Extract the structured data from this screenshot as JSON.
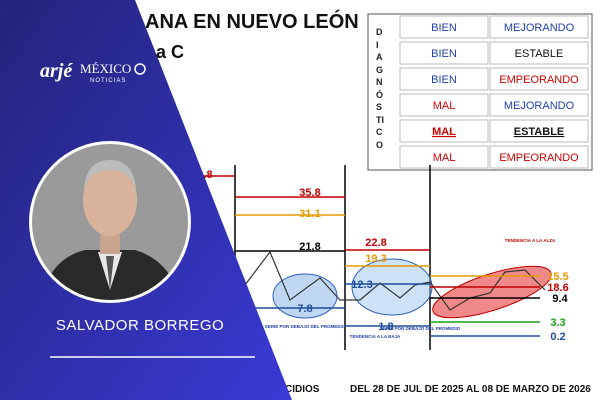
{
  "logo": {
    "brand": "arjé",
    "name": "MÉXICO",
    "tagline": "NOTICIAS"
  },
  "author": "SALVADOR BORREGO",
  "background": {
    "title": "ANA EN NUEVO LEÓN",
    "subtitle": "na C",
    "diagnosis_label": "DIAGNÓSTICO",
    "diagnosis": [
      [
        "BIEN",
        "MEJORANDO"
      ],
      [
        "BIEN",
        "ESTABLE"
      ],
      [
        "BIEN",
        "EMPEORANDO"
      ],
      [
        "MAL",
        "MEJORANDO"
      ],
      [
        "MAL",
        "ESTABLE"
      ],
      [
        "MAL",
        "EMPEORANDO"
      ]
    ],
    "levels": [
      {
        "label": "35.8",
        "color": "#c00000"
      },
      {
        "label": "31.1",
        "color": "#e69b00"
      },
      {
        "label": "21.8",
        "color": "#000000"
      },
      {
        "label": "22.8",
        "color": "#c00000"
      },
      {
        "label": "19.3",
        "color": "#e69b00"
      },
      {
        "label": "12.3",
        "color": "#1f4e9c"
      },
      {
        "label": "18.6",
        "color": "#c00000"
      },
      {
        "label": "15.5",
        "color": "#e69b00"
      },
      {
        "label": "9.4",
        "color": "#000000"
      },
      {
        "label": "3.3",
        "color": "#1aa31a"
      },
      {
        "label": "0.2",
        "color": "#1f4e9c"
      },
      {
        "label": "1.8",
        "color": "#1f4e9c"
      },
      {
        "label": "7.8",
        "color": "#1f4e9c"
      },
      {
        "label": "9.8",
        "color": "#c00000"
      }
    ],
    "notes": [
      "TENDENCIA A LA ALZA",
      "SERIE POR DEBAJO DEL PROMEDIO",
      "TENDENCIA A LA BAJA",
      "SERIE POR DEBAJO DEL PROMEDIO"
    ],
    "period": "DEL 28 DE JUL DE 2025 AL 08 DE MARZO DE 2026",
    "footer": "CIDIOS"
  }
}
